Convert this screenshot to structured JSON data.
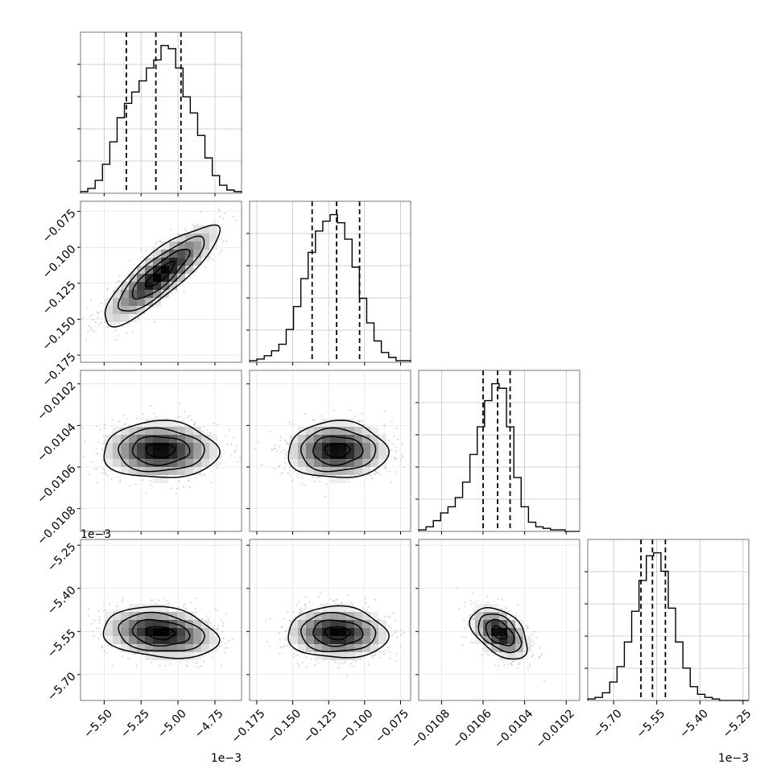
{
  "chart_data": {
    "type": "corner",
    "parameters": [
      {
        "range": [
          -5.66,
          -4.57
        ],
        "ticks": [
          -5.5,
          -5.25,
          -5.0,
          -4.75
        ],
        "tick_labels": [
          "−5.50",
          "−5.25",
          "−5.00",
          "−4.75"
        ],
        "offset_text": "1e−3",
        "quantiles": [
          -5.35,
          -5.15,
          -4.98
        ],
        "mode": -5.12
      },
      {
        "range": [
          -0.18,
          -0.068
        ],
        "ticks": [
          -0.175,
          -0.15,
          -0.125,
          -0.1,
          -0.075
        ],
        "tick_labels": [
          "−0.175",
          "−0.150",
          "−0.125",
          "−0.100",
          "−0.075"
        ],
        "offset_text": "",
        "quantiles": [
          -0.1365,
          -0.1195,
          -0.1035
        ],
        "mode": -0.119
      },
      {
        "range": [
          -0.01091,
          -0.010135
        ],
        "ticks": [
          -0.0108,
          -0.0106,
          -0.0104,
          -0.0102
        ],
        "tick_labels": [
          "−0.0108",
          "−0.0106",
          "−0.0104",
          "−0.0102"
        ],
        "offset_text": "",
        "quantiles": [
          -0.0106,
          -0.01053,
          -0.01047
        ],
        "mode": -0.01052
      },
      {
        "range": [
          -5.79,
          -5.23
        ],
        "ticks": [
          -5.7,
          -5.55,
          -5.4,
          -5.25
        ],
        "tick_labels": [
          "−5.70",
          "−5.55",
          "−5.40",
          "−5.25"
        ],
        "offset_text": "1e−3",
        "quantiles": [
          -5.605,
          -5.565,
          -5.52
        ],
        "mode": -5.555
      }
    ],
    "histograms": [
      {
        "param": 0,
        "counts": [
          1,
          3,
          8,
          18,
          32,
          47,
          56,
          63,
          70,
          78,
          83,
          92,
          90,
          78,
          60,
          50,
          36,
          22,
          11,
          5,
          2,
          1
        ]
      },
      {
        "param": 1,
        "counts": [
          1,
          2,
          4,
          7,
          11,
          20,
          34,
          51,
          67,
          80,
          86,
          90,
          85,
          75,
          58,
          39,
          24,
          13,
          6,
          3,
          1,
          1
        ]
      },
      {
        "param": 2,
        "counts": [
          1,
          3,
          7,
          12,
          16,
          22,
          32,
          50,
          68,
          85,
          96,
          93,
          68,
          35,
          16,
          6,
          3,
          2,
          1,
          1,
          0,
          0
        ]
      },
      {
        "param": 3,
        "counts": [
          1,
          2,
          5,
          12,
          22,
          38,
          58,
          78,
          94,
          96,
          84,
          60,
          38,
          21,
          9,
          4,
          2,
          1,
          0,
          0,
          0,
          0
        ]
      }
    ],
    "pairs": [
      {
        "x_param": 0,
        "y_param": 1,
        "correlation": 0.85
      },
      {
        "x_param": 0,
        "y_param": 2,
        "correlation": 0.0
      },
      {
        "x_param": 1,
        "y_param": 2,
        "correlation": 0.0
      },
      {
        "x_param": 0,
        "y_param": 3,
        "correlation": -0.2
      },
      {
        "x_param": 1,
        "y_param": 3,
        "correlation": -0.05
      },
      {
        "x_param": 2,
        "y_param": 3,
        "correlation": -0.45
      }
    ],
    "grid": true,
    "colors": {
      "line": "#000000",
      "points": "#9a9a9a",
      "grid": "#c4c4c4"
    }
  }
}
